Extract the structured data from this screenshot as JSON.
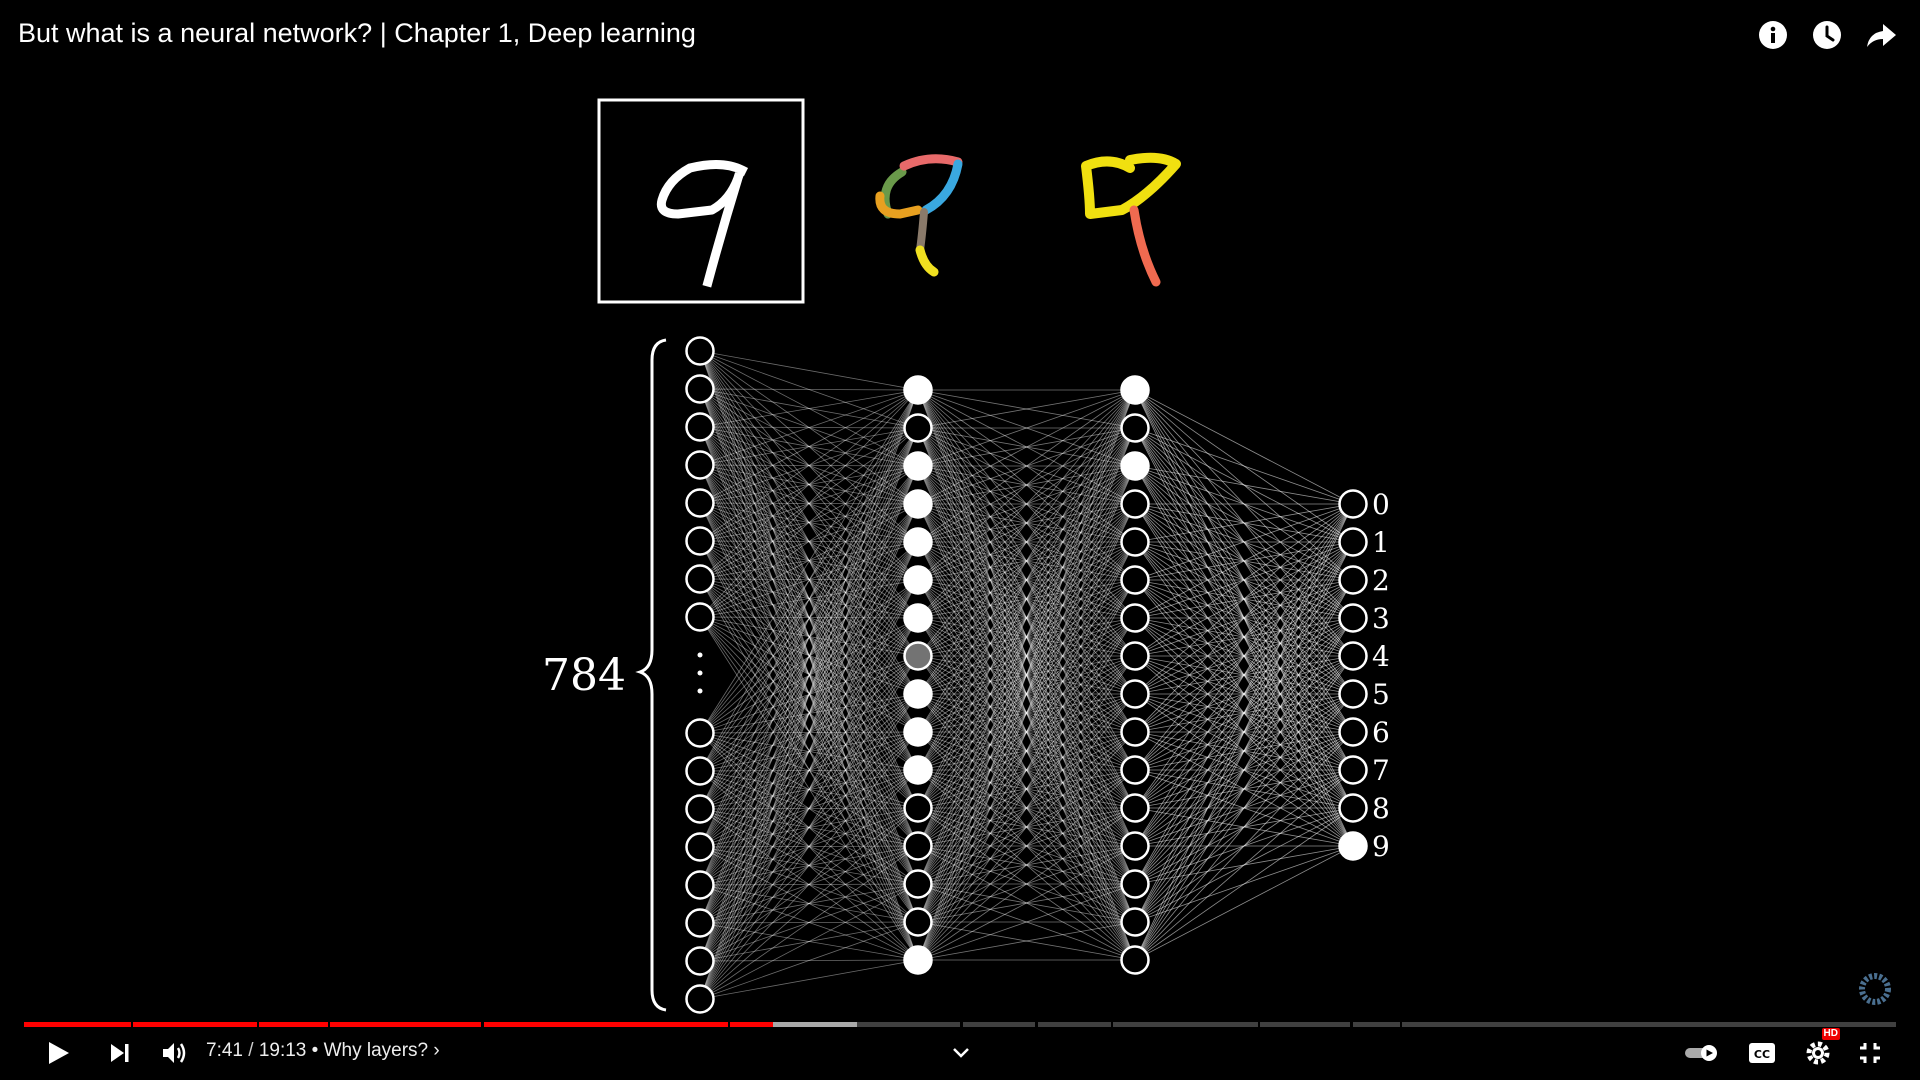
{
  "video": {
    "title": "But what is a neural network? | Chapter 1, Deep learning"
  },
  "top_icons": [
    "info-icon",
    "watch-later-icon",
    "share-icon"
  ],
  "scene": {
    "input_count_label": "784",
    "output_labels": [
      "0",
      "1",
      "2",
      "3",
      "4",
      "5",
      "6",
      "7",
      "8",
      "9"
    ],
    "hidden1_activations": [
      1,
      0,
      1,
      1,
      1,
      1,
      1,
      0.45,
      1,
      1,
      1,
      0,
      0,
      0,
      0,
      1
    ],
    "hidden2_activations": [
      1,
      0,
      1,
      0,
      0,
      0,
      0,
      0,
      0,
      0,
      0,
      0,
      0,
      0,
      0,
      0
    ],
    "output_activations": [
      0,
      0,
      0,
      0,
      0,
      0,
      0,
      0,
      0,
      1
    ]
  },
  "player": {
    "current_time": "7:41",
    "duration": "19:13",
    "time_separator": "/",
    "chapter_prefix": "•",
    "chapter_title": "Why layers?",
    "chapter_arrow": "›",
    "played_fraction": 0.4,
    "buffered_fraction": 0.445
  },
  "colors": {
    "progress_played": "#ff0000",
    "hd_badge": "#e00000"
  }
}
